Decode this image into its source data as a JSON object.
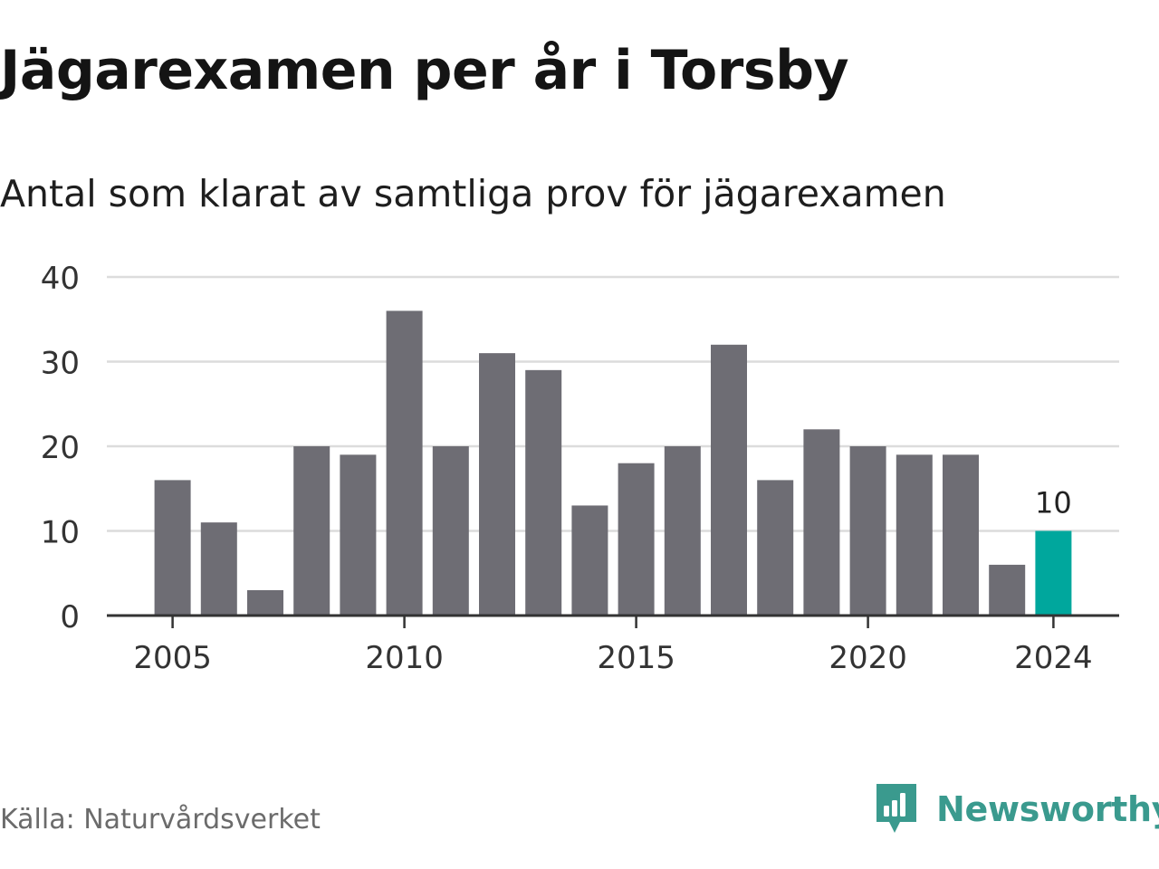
{
  "title": "Jägarexamen per år i Torsby",
  "subtitle": "Antal som klarat av samtliga prov för jägarexamen",
  "source": "Källa: Naturvårdsverket",
  "logo_text": "Newsworthy",
  "colors": {
    "bar": "#6e6d74",
    "highlight": "#00a79d",
    "grid": "#dcdcdc",
    "axis": "#333333",
    "brand": "#3a9a8e"
  },
  "chart_data": {
    "type": "bar",
    "title": "Jägarexamen per år i Torsby",
    "subtitle": "Antal som klarat av samtliga prov för jägarexamen",
    "xlabel": "",
    "ylabel": "",
    "categories": [
      2005,
      2006,
      2007,
      2008,
      2009,
      2010,
      2011,
      2012,
      2013,
      2014,
      2015,
      2016,
      2017,
      2018,
      2019,
      2020,
      2021,
      2022,
      2023,
      2024
    ],
    "values": [
      16,
      11,
      3,
      20,
      19,
      36,
      20,
      31,
      29,
      13,
      18,
      20,
      32,
      16,
      22,
      20,
      19,
      19,
      6,
      10
    ],
    "highlight_index": 19,
    "data_labels": [
      {
        "category": 2024,
        "label": "10"
      }
    ],
    "ylim": [
      0,
      40
    ],
    "yticks": [
      0,
      10,
      20,
      30,
      40
    ],
    "xticks": [
      2005,
      2010,
      2015,
      2020,
      2024
    ],
    "grid": "horizontal"
  }
}
